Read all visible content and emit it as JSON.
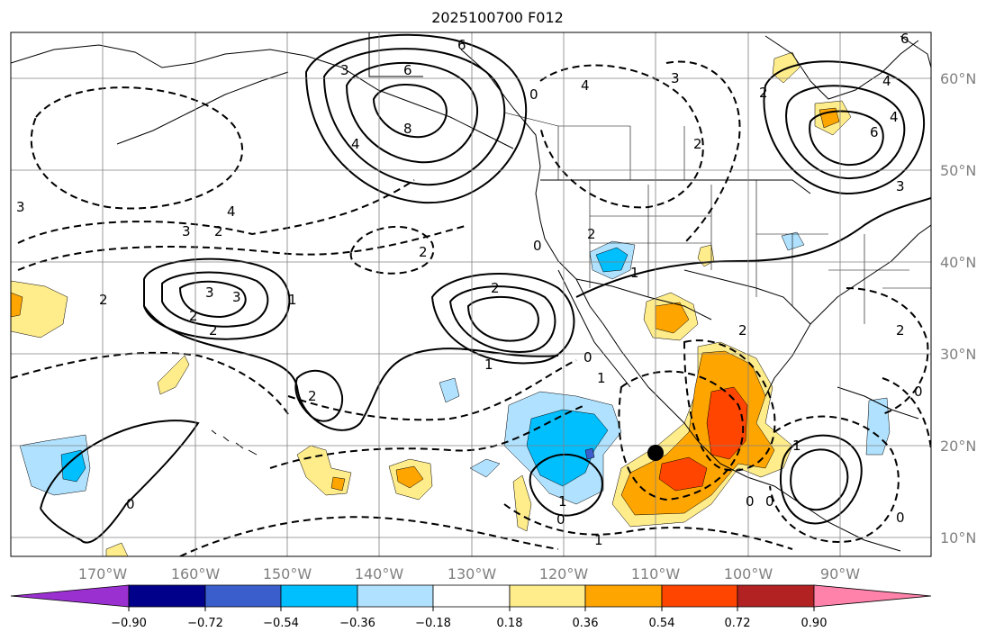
{
  "title": "2025100700 F012",
  "colors": {
    "neg_090": "#9b30d0",
    "neg_072": "#00008b",
    "neg_054": "#3a5fcd",
    "neg_036": "#00bfff",
    "neg_018": "#b0e2ff",
    "neutral": "#ffffff",
    "pos_018": "#ffec8b",
    "pos_036": "#ffa500",
    "pos_054": "#ff4500",
    "pos_072": "#b22222",
    "pos_090": "#ff82ab"
  },
  "map": {
    "lon_ticks": [
      "170°W",
      "160°W",
      "150°W",
      "140°W",
      "130°W",
      "120°W",
      "110°W",
      "100°W",
      "90°W"
    ],
    "lat_ticks": [
      "60°N",
      "50°N",
      "40°N",
      "30°N",
      "20°N",
      "10°N"
    ],
    "contour_labels": [
      "3",
      "4",
      "6",
      "6",
      "8",
      "4",
      "6",
      "3",
      "0",
      "4",
      "3",
      "2",
      "2",
      "6",
      "4",
      "3",
      "4",
      "3",
      "2",
      "2",
      "0",
      "2",
      "1",
      "2",
      "2",
      "1",
      "2",
      "3",
      "3",
      "2",
      "0",
      "1",
      "1",
      "0",
      "0",
      "2",
      "1",
      "1",
      "0",
      "0",
      "1",
      "2",
      "0",
      "2",
      "0"
    ]
  },
  "colorbar": {
    "tick_labels": [
      "−0.90",
      "−0.72",
      "−0.54",
      "−0.36",
      "−0.18",
      "0.18",
      "0.36",
      "0.54",
      "0.72",
      "0.90"
    ],
    "bins": [
      "neg_090",
      "neg_072",
      "neg_054",
      "neg_036",
      "neg_018",
      "neutral",
      "pos_018",
      "pos_036",
      "pos_054",
      "pos_072",
      "pos_090"
    ]
  }
}
